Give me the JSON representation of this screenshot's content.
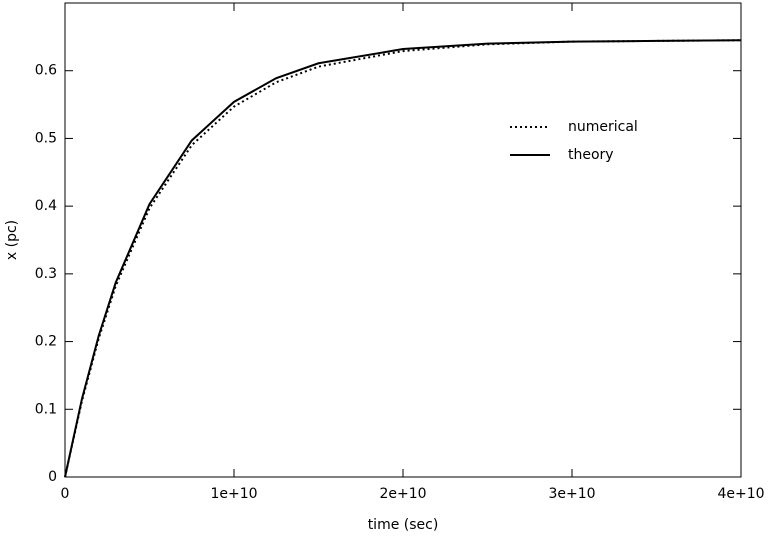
{
  "chart_data": {
    "type": "line",
    "x_label": "time (sec)",
    "y_label": "x (pc)",
    "x": [
      0,
      1000000000,
      2000000000,
      3000000000,
      5000000000,
      7500000000,
      10000000000,
      12500000000,
      15000000000,
      20000000000,
      25000000000,
      30000000000,
      35000000000,
      40000000000
    ],
    "series": [
      {
        "name": "numerical",
        "color": "#000000",
        "style": "dotted",
        "values": [
          0,
          0.112,
          0.205,
          0.282,
          0.397,
          0.49,
          0.547,
          0.583,
          0.606,
          0.629,
          0.639,
          0.643,
          0.644,
          0.645
        ]
      },
      {
        "name": "theory",
        "color": "#000000",
        "style": "solid",
        "values": [
          0,
          0.115,
          0.209,
          0.287,
          0.403,
          0.497,
          0.554,
          0.589,
          0.611,
          0.632,
          0.64,
          0.643,
          0.644,
          0.645
        ]
      }
    ],
    "xlim": [
      0,
      40000000000
    ],
    "xticks": [
      0,
      {
        "value": 10000000000,
        "label": "1e+10"
      },
      {
        "value": 20000000000,
        "label": "2e+10"
      },
      {
        "value": 30000000000,
        "label": "3e+10"
      },
      {
        "value": 40000000000,
        "label": "4e+10"
      }
    ],
    "ylim": [
      0,
      0.7
    ],
    "yticks": [
      0,
      0.1,
      0.2,
      0.3,
      0.4,
      0.5,
      0.6
    ],
    "grid": false,
    "legend": "center right"
  }
}
